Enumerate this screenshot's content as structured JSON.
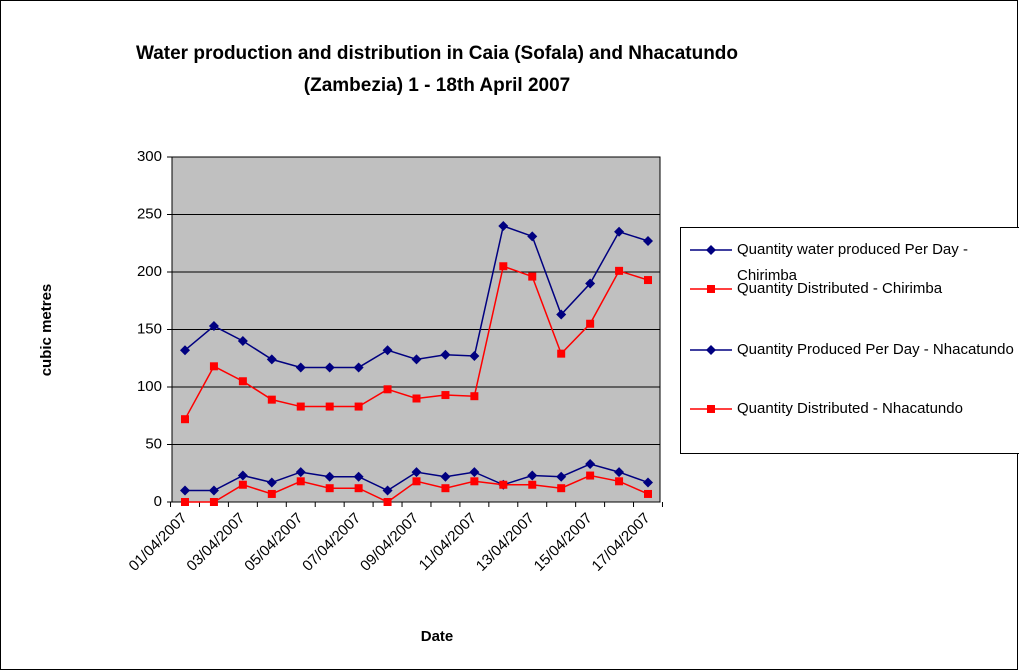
{
  "chart_data": {
    "type": "line",
    "title": "Water production and distribution in Caia (Sofala) and Nhacatundo (Zambezia) 1 - 18th April 2007",
    "x_label": "Date",
    "y_label": "cubic metres",
    "categories": [
      "01/04/2007",
      null,
      "03/04/2007",
      null,
      "05/04/2007",
      null,
      "07/04/2007",
      null,
      "09/04/2007",
      null,
      "11/04/2007",
      null,
      "13/04/2007",
      null,
      "15/04/2007",
      null,
      "17/04/2007"
    ],
    "series": [
      {
        "name": "Quantity water produced Per Day - Chirimba",
        "color": "#000080",
        "marker": "diamond",
        "values": [
          132,
          153,
          140,
          124,
          117,
          117,
          117,
          132,
          124,
          128,
          127,
          240,
          231,
          163,
          190,
          235,
          227
        ]
      },
      {
        "name": "Quantity Distributed - Chirimba",
        "color": "#ff0000",
        "marker": "square",
        "values": [
          72,
          118,
          105,
          89,
          83,
          83,
          83,
          98,
          90,
          93,
          92,
          205,
          196,
          129,
          155,
          201,
          193
        ]
      },
      {
        "name": "Quantity Produced Per Day - Nhacatundo",
        "color": "#000080",
        "marker": "diamond",
        "values": [
          10,
          10,
          23,
          17,
          26,
          22,
          22,
          10,
          26,
          22,
          26,
          15,
          23,
          22,
          33,
          26,
          17
        ]
      },
      {
        "name": "Quantity Distributed - Nhacatundo",
        "color": "#ff0000",
        "marker": "square",
        "values": [
          0,
          0,
          15,
          7,
          18,
          12,
          12,
          0,
          18,
          12,
          18,
          15,
          15,
          12,
          23,
          18,
          7
        ]
      }
    ],
    "ylim": [
      0,
      300
    ],
    "yticks": [
      0,
      50,
      100,
      150,
      200,
      250,
      300
    ],
    "grid": true,
    "legend": "right"
  }
}
